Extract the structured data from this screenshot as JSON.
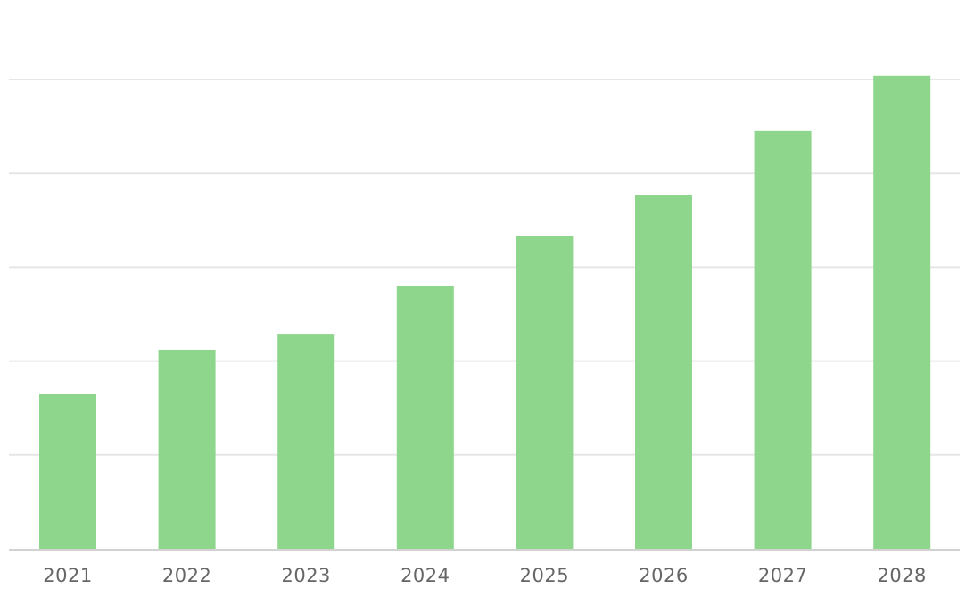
{
  "chart_data": {
    "type": "bar",
    "categories": [
      "2021",
      "2022",
      "2023",
      "2024",
      "2025",
      "2026",
      "2027",
      "2028"
    ],
    "values": [
      1.65,
      2.12,
      2.29,
      2.8,
      3.33,
      3.77,
      4.45,
      5.04
    ],
    "title": "",
    "xlabel": "",
    "ylabel": "",
    "ylim": [
      0,
      5
    ],
    "yticks": [
      0,
      1,
      2,
      3,
      4,
      5
    ],
    "show_ytick_labels": false,
    "grid": "horizontal",
    "legend": "none",
    "colors": {
      "bar": "#8dd68c",
      "grid": "#e6e6e6",
      "axis": "#d2d2d2",
      "tick_text": "#666666"
    }
  }
}
